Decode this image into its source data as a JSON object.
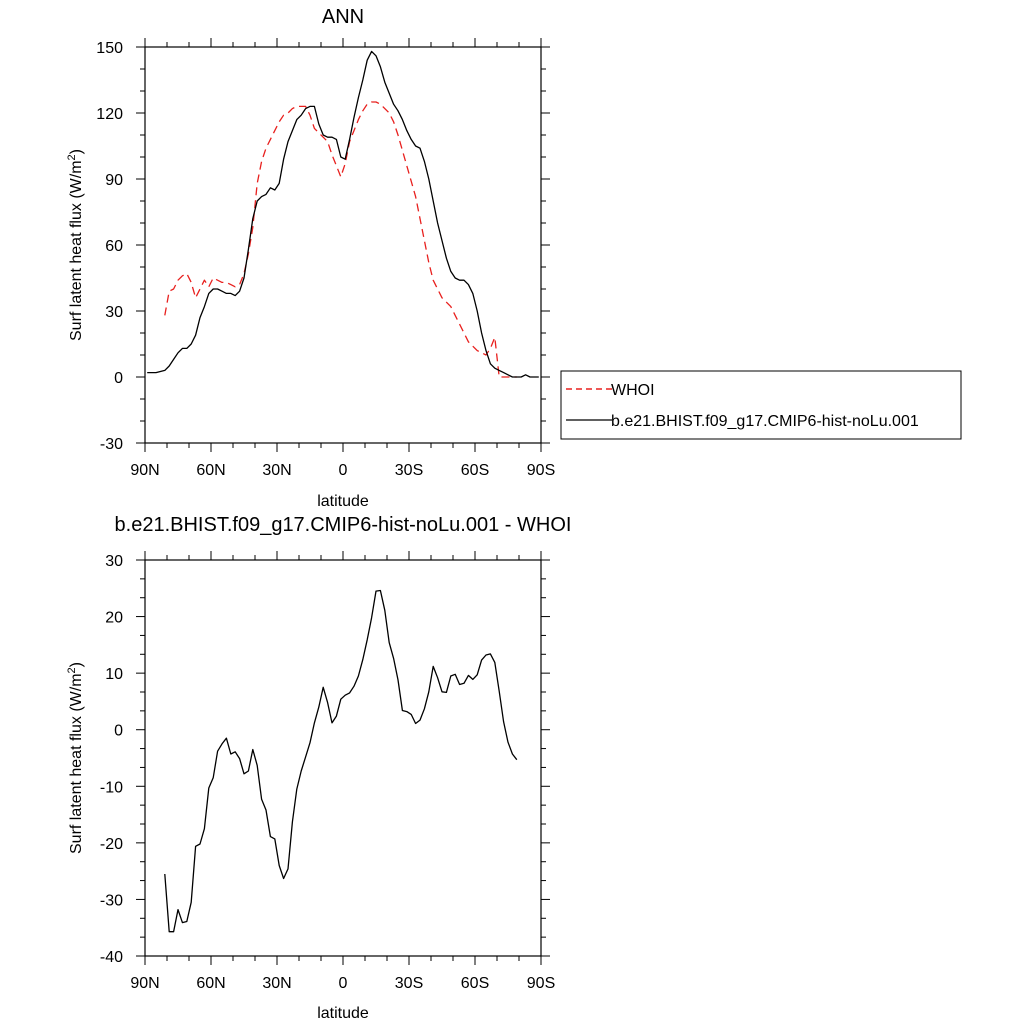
{
  "chart_data": [
    {
      "type": "line",
      "title": "ANN",
      "xlabel": "latitude",
      "ylabel": "Surf latent heat flux (W/m²)",
      "ylabel_main": "Surf latent heat flux (W/m",
      "ylabel_sup": "2",
      "ylabel_end": ")",
      "xlim": [
        90,
        -90
      ],
      "ylim": [
        -30,
        150
      ],
      "xticks": [
        90,
        60,
        30,
        0,
        -30,
        -60,
        -90
      ],
      "xtick_labels": [
        "90N",
        "60N",
        "30N",
        "0",
        "30S",
        "60S",
        "90S"
      ],
      "yticks": [
        -30,
        0,
        30,
        60,
        90,
        120,
        150
      ],
      "ytick_labels": [
        "-30",
        "0",
        "30",
        "60",
        "90",
        "120",
        "150"
      ],
      "grid": false,
      "legend": "right",
      "series": [
        {
          "name": "WHOI",
          "color": "#e8201e",
          "dash": "dashed",
          "x": [
            81,
            79,
            77,
            75,
            73,
            71,
            69,
            67,
            65,
            63,
            61,
            59,
            57,
            55,
            53,
            51,
            49,
            47,
            45,
            43,
            41,
            39,
            37,
            35,
            33,
            31,
            29,
            27,
            25,
            23,
            21,
            19,
            17,
            15,
            13,
            11,
            9,
            7,
            5,
            3,
            1,
            -1,
            -3,
            -5,
            -7,
            -9,
            -11,
            -13,
            -15,
            -17,
            -19,
            -21,
            -23,
            -25,
            -27,
            -29,
            -31,
            -33,
            -35,
            -37,
            -39,
            -41,
            -43,
            -45,
            -47,
            -49,
            -51,
            -53,
            -55,
            -57,
            -59,
            -61,
            -63,
            -65,
            -67,
            -69,
            -71,
            -73,
            -75,
            -77,
            -79
          ],
          "y": [
            28,
            39,
            40,
            44,
            46,
            47,
            43,
            36,
            40,
            44,
            41,
            45,
            44,
            43,
            43,
            42,
            41,
            42,
            47,
            56,
            68,
            88,
            98,
            104,
            108,
            112,
            116,
            119,
            120,
            122,
            123,
            123,
            123,
            119,
            113,
            111,
            109,
            107,
            101,
            96,
            91,
            97,
            107,
            112,
            117,
            121,
            124,
            125,
            125,
            124,
            122,
            120,
            116,
            110,
            103,
            96,
            89,
            82,
            72,
            62,
            52,
            44,
            40,
            36,
            34,
            32,
            28,
            24,
            20,
            16,
            14,
            12,
            11,
            10,
            13,
            18,
            0,
            0,
            0,
            0,
            0
          ]
        },
        {
          "name": "b.e21.BHIST.f09_g17.CMIP6-hist-noLu.001",
          "color": "#000000",
          "dash": "solid",
          "x": [
            89,
            87,
            85,
            83,
            81,
            79,
            77,
            75,
            73,
            71,
            69,
            67,
            65,
            63,
            61,
            59,
            57,
            55,
            53,
            51,
            49,
            47,
            45,
            43,
            41,
            39,
            37,
            35,
            33,
            31,
            29,
            27,
            25,
            23,
            21,
            19,
            17,
            15,
            13,
            11,
            9,
            7,
            5,
            3,
            1,
            -1,
            -3,
            -5,
            -7,
            -9,
            -11,
            -13,
            -15,
            -17,
            -19,
            -21,
            -23,
            -25,
            -27,
            -29,
            -31,
            -33,
            -35,
            -37,
            -39,
            -41,
            -43,
            -45,
            -47,
            -49,
            -51,
            -53,
            -55,
            -57,
            -59,
            -61,
            -63,
            -65,
            -67,
            -69,
            -71,
            -73,
            -75,
            -77,
            -79,
            -81,
            -83,
            -85,
            -87,
            -89
          ],
          "y": [
            2,
            2,
            2,
            2.5,
            3,
            5,
            8,
            11,
            13,
            13,
            15,
            19,
            27,
            32,
            38,
            40,
            40,
            39,
            38,
            38,
            37,
            39,
            45,
            58,
            72,
            80,
            82,
            83,
            86,
            85,
            88,
            99,
            107,
            112,
            117,
            119,
            122,
            123,
            123,
            115,
            110,
            109,
            109,
            108,
            100,
            99,
            108,
            118,
            127,
            135,
            144,
            148,
            146,
            141,
            134,
            129,
            124,
            121,
            117,
            112,
            108,
            105,
            104,
            98,
            90,
            80,
            70,
            62,
            54,
            48,
            45,
            44,
            44,
            42,
            38,
            30,
            20,
            12,
            6,
            4,
            3,
            2,
            1,
            0,
            0,
            0,
            1,
            0,
            0,
            0
          ]
        }
      ]
    },
    {
      "type": "line",
      "title": "b.e21.BHIST.f09_g17.CMIP6-hist-noLu.001 - WHOI",
      "xlabel": "latitude",
      "ylabel": "Surf latent heat flux (W/m²)",
      "ylabel_main": "Surf latent heat flux (W/m",
      "ylabel_sup": "2",
      "ylabel_end": ")",
      "xlim": [
        90,
        -90
      ],
      "ylim": [
        -40,
        30
      ],
      "xticks": [
        90,
        60,
        30,
        0,
        -30,
        -60,
        -90
      ],
      "xtick_labels": [
        "90N",
        "60N",
        "30N",
        "0",
        "30S",
        "60S",
        "90S"
      ],
      "yticks": [
        -40,
        -30,
        -20,
        -10,
        0,
        10,
        20,
        30
      ],
      "ytick_labels": [
        "-40",
        "-30",
        "-20",
        "-10",
        "0",
        "10",
        "20",
        "30"
      ],
      "grid": false,
      "series": [
        {
          "color": "#000000",
          "dash": "solid",
          "x": [
            81,
            79,
            77,
            75,
            73,
            71,
            69,
            67,
            65,
            63,
            61,
            59,
            57,
            55,
            53,
            51,
            49,
            47,
            45,
            43,
            41,
            39,
            37,
            35,
            33,
            31,
            29,
            27,
            25,
            23,
            21,
            19,
            17,
            15,
            13,
            11,
            9,
            7,
            5,
            3,
            1,
            -1,
            -3,
            -5,
            -7,
            -9,
            -11,
            -13,
            -15,
            -17,
            -19,
            -21,
            -23,
            -25,
            -27,
            -29,
            -31,
            -33,
            -35,
            -37,
            -39,
            -41,
            -43,
            -45,
            -47,
            -49,
            -51,
            -53,
            -55,
            -57,
            -59,
            -61,
            -63,
            -65,
            -67,
            -69,
            -71,
            -73,
            -75,
            -77,
            -79
          ],
          "y": [
            -25.5,
            -35.7,
            -35.7,
            -31.8,
            -34.1,
            -33.9,
            -30.5,
            -20.6,
            -20.2,
            -17.5,
            -10.3,
            -8.5,
            -3.8,
            -2.5,
            -1.5,
            -4.3,
            -3.9,
            -5.1,
            -7.8,
            -7.3,
            -3.5,
            -6.3,
            -12.3,
            -14.2,
            -18.9,
            -19.3,
            -24.0,
            -26.3,
            -24.6,
            -16.3,
            -10.5,
            -7.3,
            -4.8,
            -2.3,
            1.2,
            4.0,
            7.5,
            4.8,
            1.2,
            2.4,
            5.4,
            6.1,
            6.5,
            7.7,
            9.5,
            12.4,
            15.9,
            19.8,
            24.5,
            24.6,
            21.1,
            15.4,
            12.6,
            8.8,
            3.4,
            3.2,
            2.7,
            1.1,
            1.7,
            3.7,
            6.7,
            11.2,
            9.2,
            6.7,
            6.6,
            9.5,
            9.8,
            8.0,
            8.2,
            9.6,
            8.9,
            9.7,
            12.3,
            13.2,
            13.4,
            11.9,
            6.8,
            1.4,
            -2.2,
            -4.3,
            -5.3
          ]
        }
      ]
    }
  ]
}
